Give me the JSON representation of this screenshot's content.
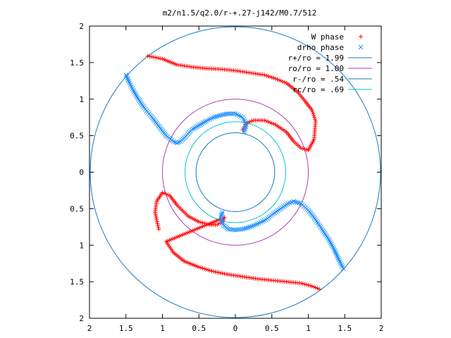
{
  "chart_data": {
    "type": "scatter",
    "title": "m2/n1.5/q2.0/r-+.27-j142/M0.7/512",
    "xlim": [
      -2,
      2
    ],
    "ylim": [
      -2,
      2
    ],
    "x_tick_labels": [
      "2",
      "1.5",
      "1",
      "0.5",
      "0",
      "0.5",
      "1",
      "1.5",
      "2"
    ],
    "y_tick_labels": [
      "2",
      "1.5",
      "1",
      "0.5",
      "0",
      "0.5",
      "1",
      "1.5",
      "2"
    ],
    "legend_position": "top-right",
    "series": [
      {
        "name": "W phase",
        "marker": "+",
        "color": "#ff0000",
        "arms": [
          [
            [
              -1.2,
              1.59
            ],
            [
              -1.0,
              1.55
            ],
            [
              -0.8,
              1.47
            ],
            [
              -0.6,
              1.44
            ],
            [
              -0.4,
              1.42
            ],
            [
              -0.2,
              1.41
            ],
            [
              0.0,
              1.39
            ],
            [
              0.2,
              1.36
            ],
            [
              0.4,
              1.33
            ],
            [
              0.55,
              1.28
            ],
            [
              0.7,
              1.22
            ],
            [
              0.85,
              1.1
            ],
            [
              0.95,
              0.98
            ],
            [
              1.05,
              0.85
            ],
            [
              1.1,
              0.7
            ],
            [
              1.08,
              0.45
            ],
            [
              1.0,
              0.3
            ],
            [
              0.9,
              0.33
            ],
            [
              0.8,
              0.42
            ],
            [
              0.7,
              0.55
            ],
            [
              0.55,
              0.65
            ],
            [
              0.4,
              0.71
            ],
            [
              0.25,
              0.71
            ],
            [
              0.15,
              0.67
            ],
            [
              0.1,
              0.58
            ]
          ],
          [
            [
              -1.05,
              -0.78
            ],
            [
              -1.08,
              -0.65
            ],
            [
              -1.1,
              -0.55
            ],
            [
              -1.08,
              -0.4
            ],
            [
              -1.0,
              -0.28
            ],
            [
              -0.9,
              -0.32
            ],
            [
              -0.8,
              -0.45
            ],
            [
              -0.65,
              -0.6
            ],
            [
              -0.5,
              -0.68
            ],
            [
              -0.35,
              -0.72
            ],
            [
              -0.25,
              -0.72
            ],
            [
              -0.18,
              -0.68
            ],
            [
              -0.15,
              -0.62
            ],
            [
              -0.95,
              -0.95
            ],
            [
              -0.85,
              -1.1
            ],
            [
              -0.7,
              -1.22
            ],
            [
              -0.5,
              -1.3
            ],
            [
              -0.3,
              -1.36
            ],
            [
              -0.1,
              -1.4
            ],
            [
              0.1,
              -1.43
            ],
            [
              0.3,
              -1.46
            ],
            [
              0.5,
              -1.48
            ],
            [
              0.7,
              -1.5
            ],
            [
              0.9,
              -1.52
            ],
            [
              1.05,
              -1.56
            ],
            [
              1.15,
              -1.6
            ]
          ]
        ]
      },
      {
        "name": "drho phase",
        "marker": "x",
        "color": "#1e90ff",
        "arms": [
          [
            [
              -1.5,
              1.33
            ],
            [
              -1.45,
              1.22
            ],
            [
              -1.4,
              1.12
            ],
            [
              -1.33,
              1.0
            ],
            [
              -1.25,
              0.88
            ],
            [
              -1.15,
              0.76
            ],
            [
              -1.05,
              0.63
            ],
            [
              -0.95,
              0.5
            ],
            [
              -0.85,
              0.42
            ],
            [
              -0.8,
              0.4
            ],
            [
              -0.75,
              0.42
            ],
            [
              -0.7,
              0.47
            ],
            [
              -0.6,
              0.58
            ],
            [
              -0.5,
              0.64
            ],
            [
              -0.4,
              0.7
            ],
            [
              -0.3,
              0.75
            ],
            [
              -0.2,
              0.78
            ],
            [
              -0.1,
              0.8
            ],
            [
              0.0,
              0.8
            ],
            [
              0.1,
              0.75
            ],
            [
              0.15,
              0.65
            ],
            [
              0.12,
              0.55
            ]
          ],
          [
            [
              1.48,
              -1.32
            ],
            [
              1.42,
              -1.2
            ],
            [
              1.35,
              -1.05
            ],
            [
              1.28,
              -0.92
            ],
            [
              1.2,
              -0.8
            ],
            [
              1.1,
              -0.65
            ],
            [
              1.0,
              -0.52
            ],
            [
              0.9,
              -0.43
            ],
            [
              0.8,
              -0.4
            ],
            [
              0.72,
              -0.43
            ],
            [
              0.62,
              -0.5
            ],
            [
              0.52,
              -0.57
            ],
            [
              0.42,
              -0.65
            ],
            [
              0.3,
              -0.71
            ],
            [
              0.2,
              -0.75
            ],
            [
              0.1,
              -0.78
            ],
            [
              0.0,
              -0.79
            ],
            [
              -0.1,
              -0.78
            ],
            [
              -0.17,
              -0.72
            ],
            [
              -0.2,
              -0.62
            ],
            [
              -0.18,
              -0.55
            ]
          ]
        ]
      }
    ],
    "circles": [
      {
        "name": "r+/ro = 1.99",
        "radius": 1.99,
        "color": "#1878c8"
      },
      {
        "name": "ro/ro = 1.00",
        "radius": 1.0,
        "color": "#b040b0"
      },
      {
        "name": "r-/ro = .54",
        "radius": 0.54,
        "color": "#1878c8"
      },
      {
        "name": "rc/ro = .69",
        "radius": 0.69,
        "color": "#00c8c8"
      }
    ]
  }
}
